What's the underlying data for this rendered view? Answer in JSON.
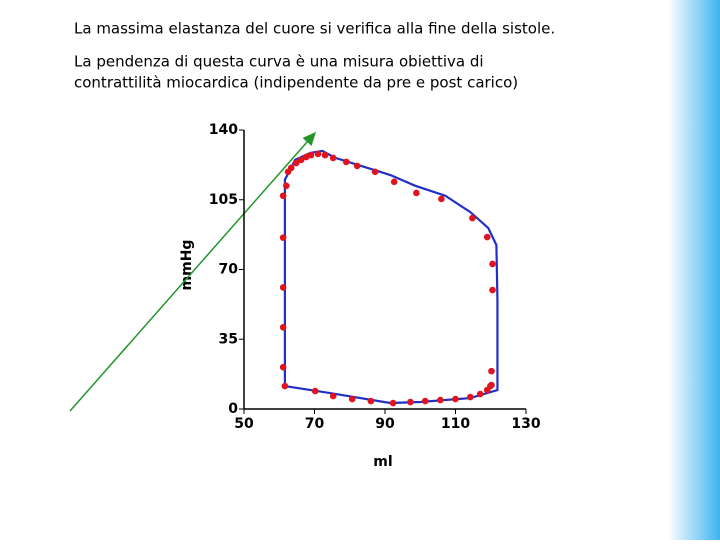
{
  "slide": {
    "heading": "La massima elastanza del cuore si verifica alla fine della sistole.",
    "paragraph": [
      "La pendenza di questa curva è una misura obiettiva di",
      "contrattilità miocardica (indipendente da pre e post carico)"
    ]
  },
  "chart_data": {
    "type": "scatter",
    "xlabel": "ml",
    "ylabel": "mmHg",
    "xlim": [
      50,
      130
    ],
    "xticks": [
      50,
      70,
      90,
      110,
      130
    ],
    "ylim": [
      0,
      140
    ],
    "yticks": [
      0,
      35,
      70,
      105,
      140
    ],
    "curve": {
      "color": "#1f2fc8",
      "x": [
        61.6,
        61.6,
        64.5,
        68.8,
        72.2,
        75.9,
        91.5,
        98.6,
        107.1,
        114.2,
        119.3,
        121.6,
        121.9,
        121.9,
        114.2,
        100,
        91.5,
        74.4,
        61.6
      ],
      "y": [
        11.5,
        115,
        125,
        128.5,
        129.5,
        126,
        117.4,
        112,
        107,
        98.8,
        90.8,
        82.3,
        54.7,
        9.5,
        5.5,
        3.5,
        3,
        8,
        11.5
      ]
    },
    "points": {
      "color": "#e0141e",
      "x": [
        61.6,
        61.1,
        61.1,
        61.1,
        61.1,
        61.1,
        62,
        62.5,
        63.4,
        64.8,
        66.2,
        67.6,
        69,
        71,
        73,
        75.3,
        79,
        82.1,
        87.2,
        92.6,
        98.9,
        106,
        114.8,
        119,
        120.5,
        120.5,
        120.2,
        120.2,
        70.2,
        75.3,
        80.7,
        86,
        92.3,
        97.2,
        101.4,
        105.7,
        110,
        114.2,
        117,
        119,
        119.9
      ],
      "y": [
        11.5,
        21,
        41,
        61,
        86,
        107,
        112,
        119,
        121,
        123.4,
        125,
        126.4,
        127.4,
        128,
        127.4,
        126,
        124,
        122,
        119,
        114,
        108.4,
        105.4,
        95.8,
        86.3,
        72.8,
        59.7,
        19,
        12,
        9,
        6.5,
        5,
        4,
        3,
        3.5,
        4,
        4.5,
        5,
        6,
        7.5,
        9.5,
        11.5
      ]
    }
  }
}
